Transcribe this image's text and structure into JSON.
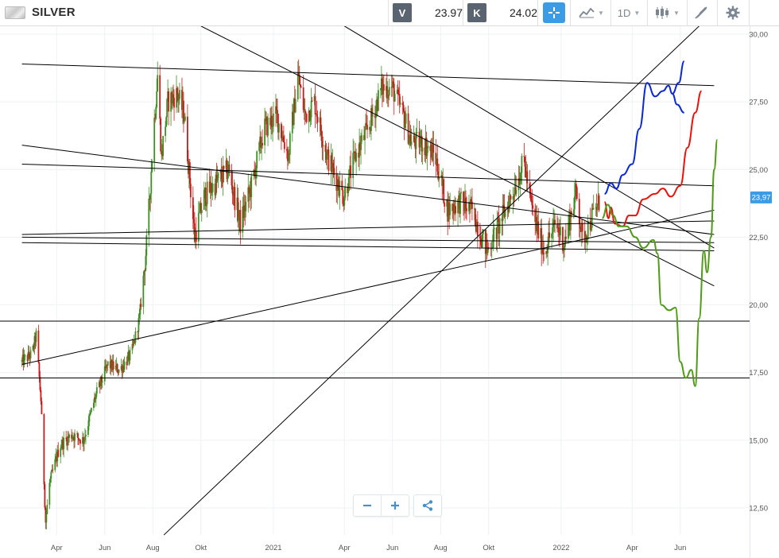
{
  "toolbar": {
    "asset_name": "SILVER",
    "asset_icon": "silver-bar-icon",
    "sell_label": "V",
    "sell_price": "23.97",
    "buy_label": "K",
    "buy_price": "24.02",
    "crosshair_icon": "crosshair-icon",
    "chart_type_icon": "line-chart-icon",
    "timeframe": "1D",
    "candle_icon": "candlestick-icon",
    "draw_icon": "drawing-tools-icon",
    "settings_icon": "gear-icon"
  },
  "zoom": {
    "zoom_out_icon": "minus-icon",
    "zoom_in_icon": "plus-icon",
    "share_icon": "share-icon"
  },
  "colors": {
    "candle_up": "#3f8f26",
    "candle_down": "#c81c1c",
    "forecast_blue": "#0a28d8",
    "forecast_red": "#e8130c",
    "forecast_green": "#4f9a16",
    "trendline": "#000000",
    "price_badge": "#3c9be5",
    "axis_text": "#555555"
  },
  "chart_data": {
    "type": "candlestick",
    "instrument": "SILVER",
    "timeframe": "1D",
    "current_price": 23.97,
    "current_price_label": "23,97",
    "y_ticks": [
      {
        "value": 30.0,
        "label": "30,00"
      },
      {
        "value": 27.5,
        "label": "27,50"
      },
      {
        "value": 25.0,
        "label": "25,00"
      },
      {
        "value": 22.5,
        "label": "22,50"
      },
      {
        "value": 20.0,
        "label": "20,00"
      },
      {
        "value": 17.5,
        "label": "17,50"
      },
      {
        "value": 15.0,
        "label": "15,00"
      },
      {
        "value": 12.5,
        "label": "12,50"
      }
    ],
    "x_ticks": [
      {
        "date": "2020-04-01",
        "label": "Apr"
      },
      {
        "date": "2020-06-01",
        "label": "Jun"
      },
      {
        "date": "2020-08-01",
        "label": "Aug"
      },
      {
        "date": "2020-10-01",
        "label": "Okt"
      },
      {
        "date": "2021-01-01",
        "label": "2021"
      },
      {
        "date": "2021-04-01",
        "label": "Apr"
      },
      {
        "date": "2021-06-01",
        "label": "Jun"
      },
      {
        "date": "2021-08-01",
        "label": "Aug"
      },
      {
        "date": "2021-10-01",
        "label": "Okt"
      },
      {
        "date": "2022-01-01",
        "label": "2022"
      },
      {
        "date": "2022-04-01",
        "label": "Apr"
      },
      {
        "date": "2022-06-01",
        "label": "Jun"
      }
    ],
    "ylim": [
      11.5,
      30.3
    ],
    "xlim": [
      "2020-02-17",
      "2022-07-18"
    ],
    "grid": true,
    "price_path": [
      [
        "2020-02-17",
        17.9
      ],
      [
        "2020-03-01",
        18.2
      ],
      [
        "2020-03-06",
        18.9
      ],
      [
        "2020-03-12",
        16.5
      ],
      [
        "2020-03-18",
        12.0
      ],
      [
        "2020-03-23",
        13.4
      ],
      [
        "2020-04-05",
        14.8
      ],
      [
        "2020-04-20",
        15.2
      ],
      [
        "2020-05-05",
        15.0
      ],
      [
        "2020-05-20",
        16.6
      ],
      [
        "2020-06-05",
        17.8
      ],
      [
        "2020-06-20",
        17.6
      ],
      [
        "2020-07-05",
        18.2
      ],
      [
        "2020-07-15",
        19.5
      ],
      [
        "2020-07-25",
        22.5
      ],
      [
        "2020-08-01",
        26.0
      ],
      [
        "2020-08-07",
        28.5
      ],
      [
        "2020-08-12",
        25.5
      ],
      [
        "2020-08-20",
        27.5
      ],
      [
        "2020-09-01",
        27.8
      ],
      [
        "2020-09-10",
        27.0
      ],
      [
        "2020-09-23",
        22.5
      ],
      [
        "2020-10-05",
        24.0
      ],
      [
        "2020-10-20",
        24.5
      ],
      [
        "2020-11-05",
        25.0
      ],
      [
        "2020-11-20",
        23.0
      ],
      [
        "2020-12-05",
        24.5
      ],
      [
        "2020-12-20",
        26.5
      ],
      [
        "2021-01-05",
        27.0
      ],
      [
        "2021-01-20",
        25.5
      ],
      [
        "2021-02-01",
        28.5
      ],
      [
        "2021-02-10",
        27.0
      ],
      [
        "2021-02-22",
        27.5
      ],
      [
        "2021-03-10",
        25.5
      ],
      [
        "2021-03-31",
        24.0
      ],
      [
        "2021-04-15",
        25.5
      ],
      [
        "2021-05-01",
        26.5
      ],
      [
        "2021-05-18",
        28.0
      ],
      [
        "2021-06-01",
        28.0
      ],
      [
        "2021-06-15",
        27.0
      ],
      [
        "2021-06-25",
        26.0
      ],
      [
        "2021-07-10",
        26.0
      ],
      [
        "2021-07-25",
        25.5
      ],
      [
        "2021-08-10",
        23.5
      ],
      [
        "2021-08-25",
        23.8
      ],
      [
        "2021-09-10",
        23.5
      ],
      [
        "2021-09-29",
        22.0
      ],
      [
        "2021-10-15",
        23.0
      ],
      [
        "2021-11-01",
        24.2
      ],
      [
        "2021-11-15",
        25.3
      ],
      [
        "2021-11-25",
        23.5
      ],
      [
        "2021-12-10",
        22.0
      ],
      [
        "2021-12-25",
        23.0
      ],
      [
        "2022-01-05",
        22.3
      ],
      [
        "2022-01-20",
        24.2
      ],
      [
        "2022-01-28",
        22.4
      ],
      [
        "2022-02-10",
        23.3
      ],
      [
        "2022-02-20",
        23.9
      ]
    ],
    "horizontal_lines": [
      19.4,
      17.3
    ],
    "trendlines": [
      {
        "x1": "2020-02-17",
        "y1": 28.9,
        "x2": "2022-07-14",
        "y2": 28.1
      },
      {
        "x1": "2020-02-17",
        "y1": 25.2,
        "x2": "2022-07-14",
        "y2": 24.4
      },
      {
        "x1": "2020-02-17",
        "y1": 25.9,
        "x2": "2022-07-14",
        "y2": 22.6
      },
      {
        "x1": "2020-02-17",
        "y1": 22.6,
        "x2": "2022-07-14",
        "y2": 23.1
      },
      {
        "x1": "2020-02-17",
        "y1": 22.5,
        "x2": "2022-07-14",
        "y2": 22.3
      },
      {
        "x1": "2020-02-17",
        "y1": 22.3,
        "x2": "2022-07-14",
        "y2": 22.0
      },
      {
        "x1": "2020-02-17",
        "y1": 17.8,
        "x2": "2022-07-14",
        "y2": 23.5
      },
      {
        "x1": "2020-10-01",
        "y1": 30.3,
        "x2": "2022-07-14",
        "y2": 20.7
      },
      {
        "x1": "2021-04-01",
        "y1": 30.3,
        "x2": "2022-07-14",
        "y2": 22.1
      },
      {
        "x1": "2020-08-15",
        "y1": 11.5,
        "x2": "2022-06-25",
        "y2": 30.3
      }
    ],
    "series": [
      {
        "color": "#0a28d8",
        "points": [
          [
            "2022-02-25",
            24.1
          ],
          [
            "2022-03-05",
            24.5
          ],
          [
            "2022-03-12",
            24.3
          ],
          [
            "2022-03-20",
            24.8
          ],
          [
            "2022-04-01",
            25.2
          ],
          [
            "2022-04-10",
            26.5
          ],
          [
            "2022-04-20",
            28.2
          ],
          [
            "2022-04-30",
            27.7
          ],
          [
            "2022-05-10",
            27.9
          ],
          [
            "2022-05-17",
            28.1
          ],
          [
            "2022-05-22",
            27.8
          ],
          [
            "2022-05-30",
            28.2
          ],
          [
            "2022-06-06",
            29.0
          ]
        ]
      },
      {
        "color": "#0a28d8",
        "points": [
          [
            "2022-05-22",
            27.8
          ],
          [
            "2022-05-28",
            27.4
          ],
          [
            "2022-06-06",
            27.1
          ]
        ]
      },
      {
        "color": "#e8130c",
        "points": [
          [
            "2022-02-25",
            23.8
          ],
          [
            "2022-03-02",
            23.2
          ],
          [
            "2022-03-05",
            23.6
          ],
          [
            "2022-03-10",
            23.0
          ],
          [
            "2022-03-20",
            22.9
          ],
          [
            "2022-03-28",
            23.3
          ],
          [
            "2022-04-05",
            23.3
          ],
          [
            "2022-04-15",
            23.9
          ],
          [
            "2022-04-30",
            24.1
          ],
          [
            "2022-05-10",
            24.3
          ],
          [
            "2022-05-20",
            24.0
          ],
          [
            "2022-06-01",
            24.4
          ],
          [
            "2022-06-10",
            25.8
          ],
          [
            "2022-06-20",
            27.1
          ],
          [
            "2022-06-28",
            27.9
          ]
        ]
      },
      {
        "color": "#4f9a16",
        "points": [
          [
            "2022-02-22",
            23.2
          ],
          [
            "2022-03-01",
            23.7
          ],
          [
            "2022-03-08",
            23.3
          ],
          [
            "2022-03-15",
            22.9
          ],
          [
            "2022-03-25",
            22.9
          ],
          [
            "2022-04-05",
            22.5
          ],
          [
            "2022-04-15",
            22.1
          ],
          [
            "2022-04-28",
            22.4
          ],
          [
            "2022-05-03",
            21.9
          ],
          [
            "2022-05-08",
            20.0
          ],
          [
            "2022-05-18",
            19.8
          ],
          [
            "2022-05-26",
            19.9
          ],
          [
            "2022-06-01",
            17.9
          ],
          [
            "2022-06-08",
            17.3
          ],
          [
            "2022-06-15",
            17.6
          ],
          [
            "2022-06-20",
            17.0
          ],
          [
            "2022-06-25",
            19.5
          ],
          [
            "2022-07-01",
            22.0
          ],
          [
            "2022-07-05",
            21.2
          ],
          [
            "2022-07-10",
            22.5
          ],
          [
            "2022-07-14",
            25.0
          ],
          [
            "2022-07-18",
            26.1
          ]
        ]
      }
    ]
  }
}
